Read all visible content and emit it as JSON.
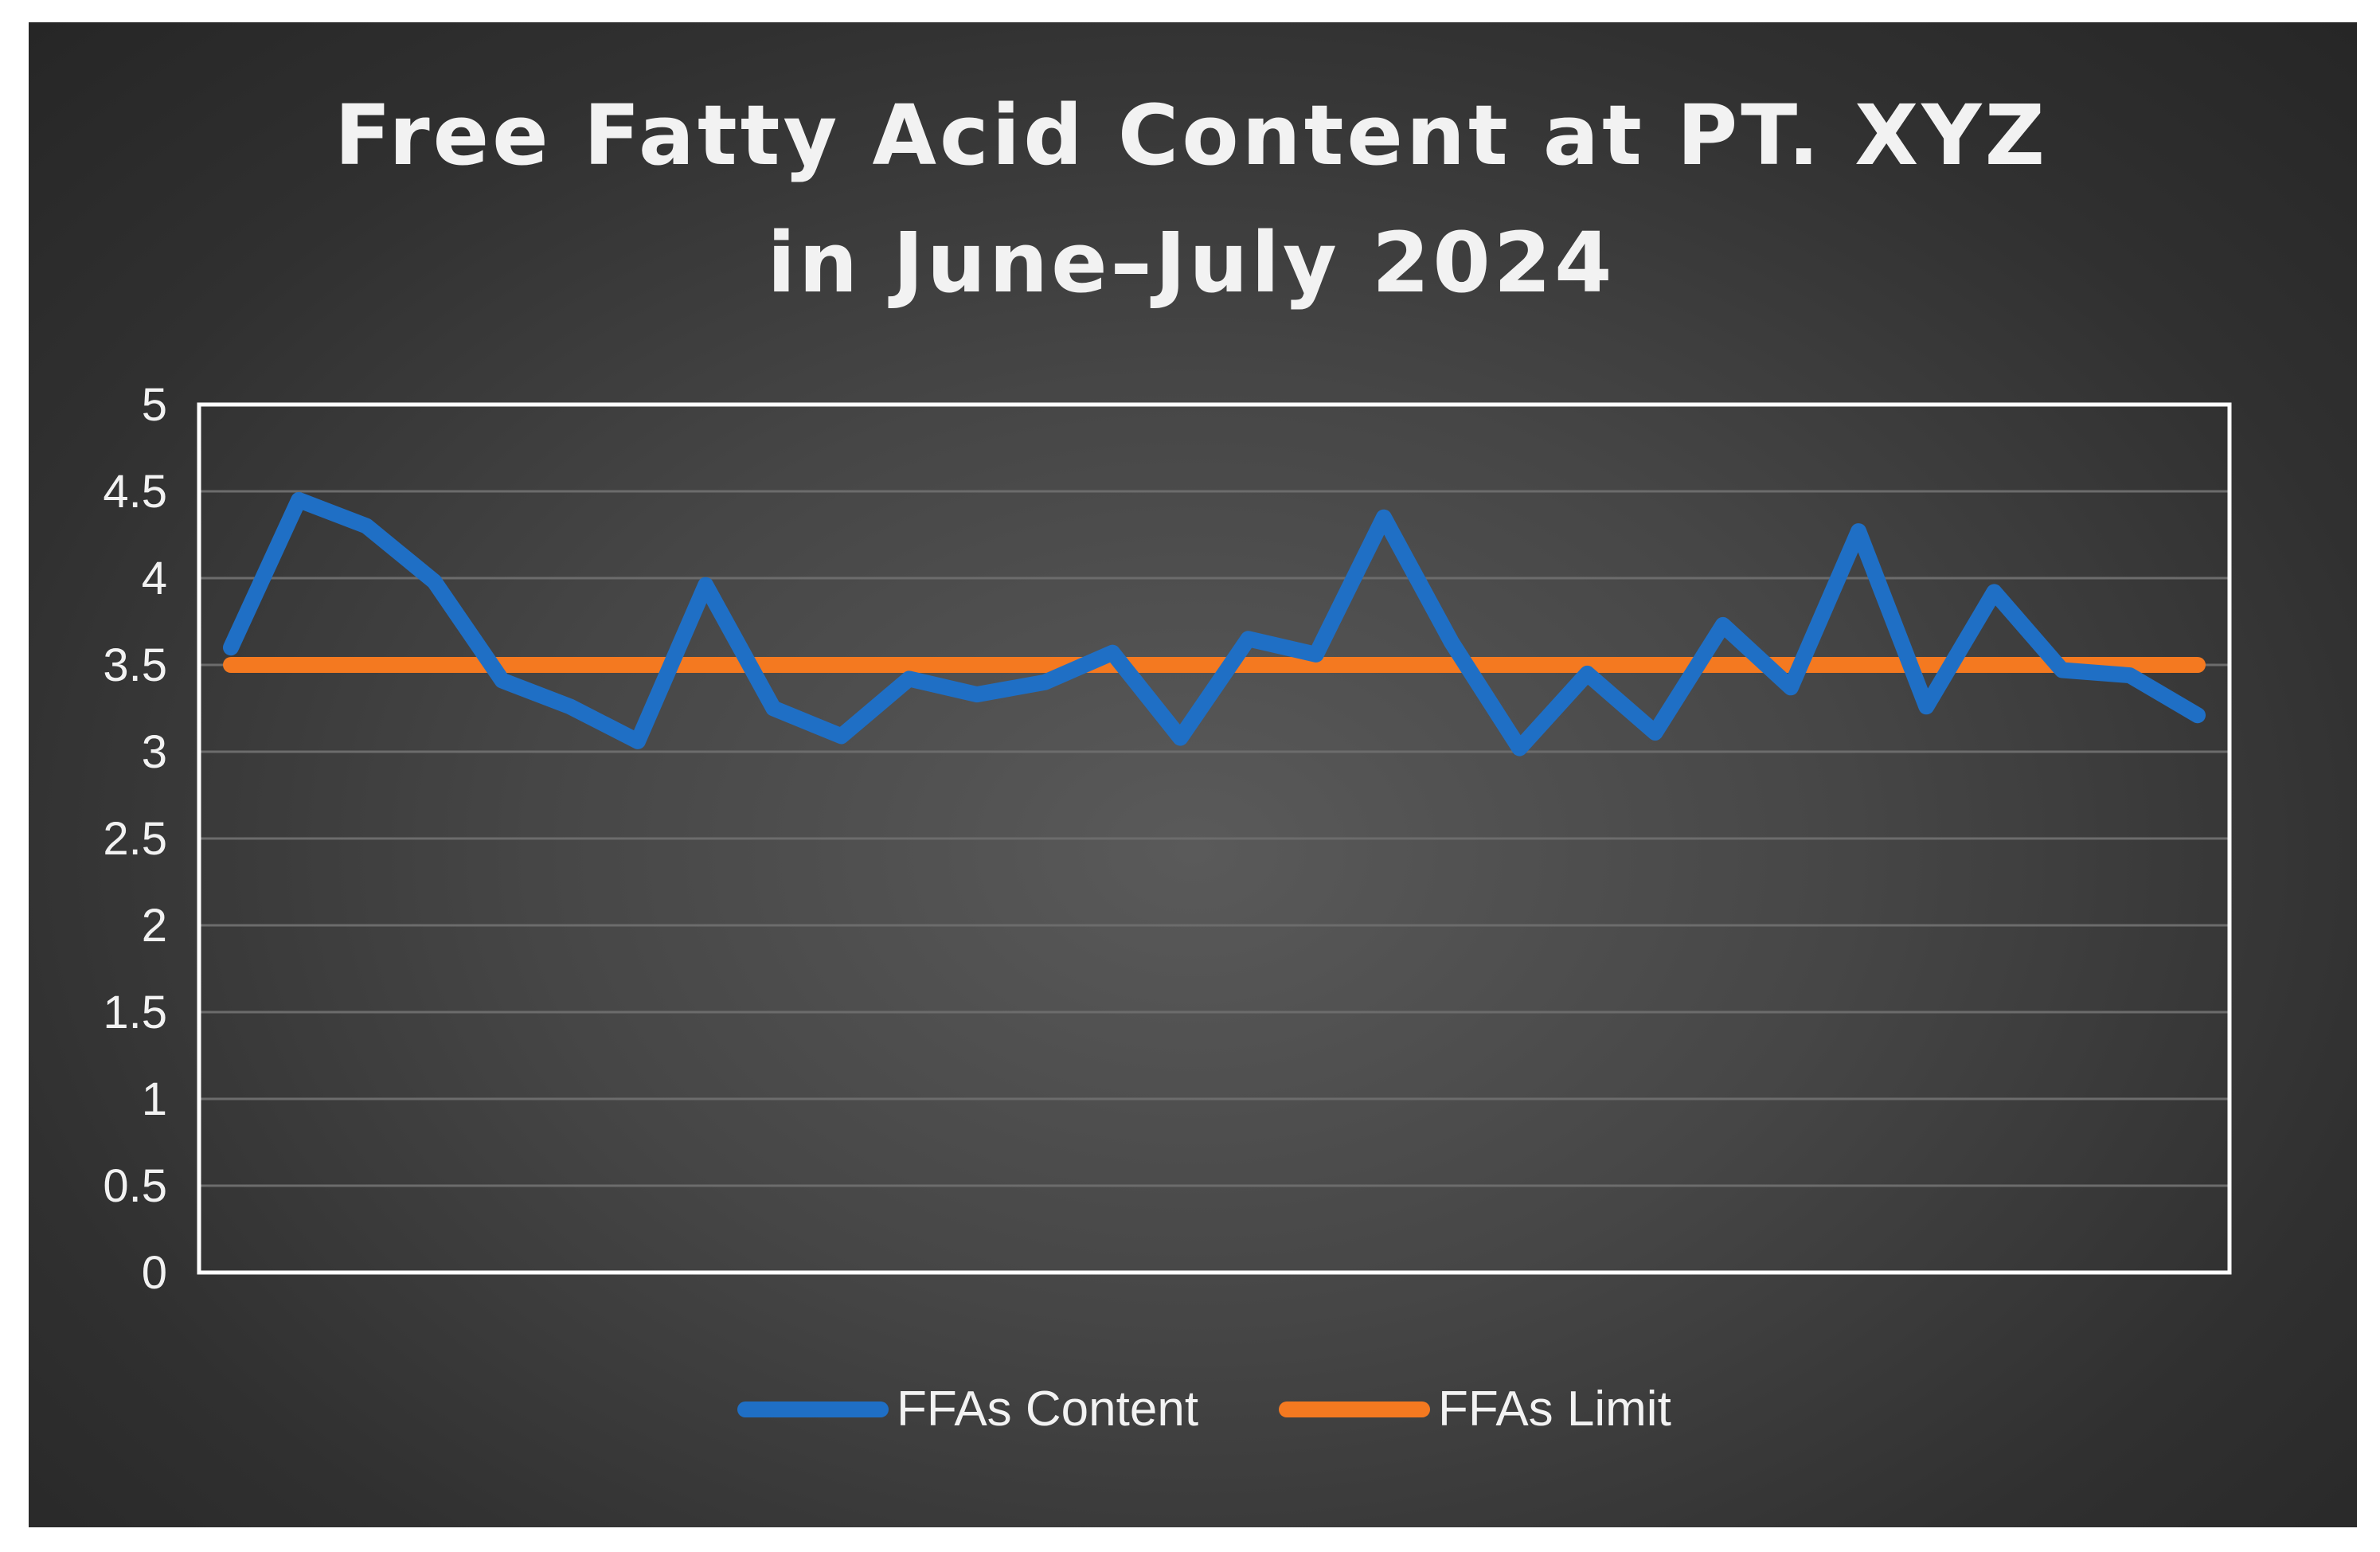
{
  "chart_data": {
    "type": "line",
    "title_lines": [
      "Free Fatty Acid Content at PT. XYZ",
      "in June–July 2024"
    ],
    "xlabel": "",
    "ylabel": "",
    "ylim": [
      0,
      5
    ],
    "yticks": [
      "0",
      "0.5",
      "1",
      "1.5",
      "2",
      "2.5",
      "3",
      "3.5",
      "4",
      "4.5",
      "5"
    ],
    "grid": true,
    "legend_position": "bottom",
    "series": [
      {
        "name": "FFAs Content",
        "color": "#1f6fc5",
        "values": [
          3.6,
          4.45,
          4.3,
          3.98,
          3.41,
          3.26,
          3.06,
          3.96,
          3.25,
          3.09,
          3.42,
          3.33,
          3.4,
          3.57,
          3.08,
          3.65,
          3.56,
          4.35,
          3.63,
          3.02,
          3.45,
          3.11,
          3.73,
          3.37,
          4.27,
          3.26,
          3.92,
          3.47,
          3.44,
          3.21
        ]
      },
      {
        "name": "FFAs Limit",
        "color": "#f47920",
        "values": [
          3.5,
          3.5,
          3.5,
          3.5,
          3.5,
          3.5,
          3.5,
          3.5,
          3.5,
          3.5,
          3.5,
          3.5,
          3.5,
          3.5,
          3.5,
          3.5,
          3.5,
          3.5,
          3.5,
          3.5,
          3.5,
          3.5,
          3.5,
          3.5,
          3.5,
          3.5,
          3.5,
          3.5,
          3.5,
          3.5
        ]
      }
    ]
  }
}
